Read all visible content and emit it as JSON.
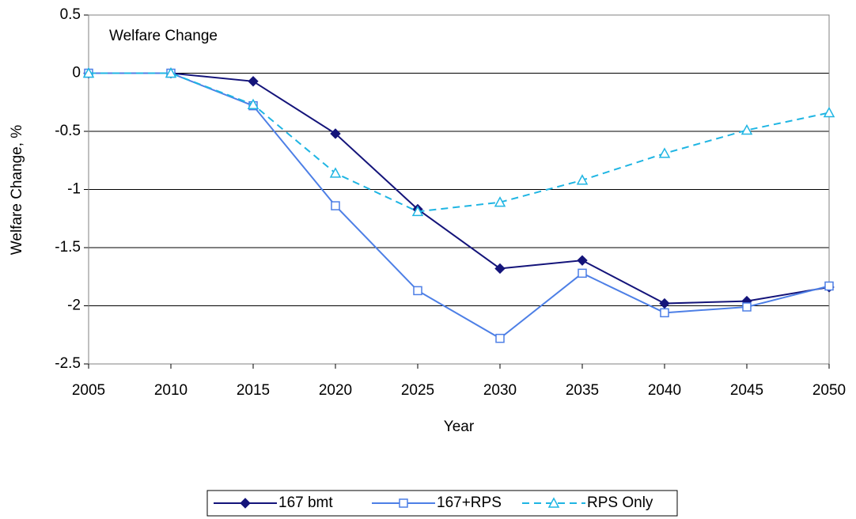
{
  "chart_data": {
    "type": "line",
    "annotation": "Welfare Change",
    "xlabel": "Year",
    "ylabel": "Welfare Change, %",
    "x": [
      2005,
      2010,
      2015,
      2020,
      2025,
      2030,
      2035,
      2040,
      2045,
      2050
    ],
    "xlim": [
      2005,
      2050
    ],
    "xticks": [
      2005,
      2010,
      2015,
      2020,
      2025,
      2030,
      2035,
      2040,
      2045,
      2050
    ],
    "ylim": [
      -2.5,
      0.5
    ],
    "yticks": [
      0.5,
      0,
      -0.5,
      -1,
      -1.5,
      -2,
      -2.5
    ],
    "grid": true,
    "legend": "bottom",
    "series": [
      {
        "name": "167 bmt",
        "color": "#14147a",
        "marker": "diamond",
        "dash": false,
        "values": [
          0,
          0,
          -0.07,
          -0.52,
          -1.17,
          -1.68,
          -1.61,
          -1.98,
          -1.96,
          -1.84
        ]
      },
      {
        "name": "167+RPS",
        "color": "#4d7fe6",
        "marker": "square",
        "dash": false,
        "values": [
          0,
          0,
          -0.28,
          -1.14,
          -1.87,
          -2.28,
          -1.72,
          -2.06,
          -2.01,
          -1.83
        ]
      },
      {
        "name": "RPS Only",
        "color": "#1fb5e3",
        "marker": "triangle",
        "dash": true,
        "values": [
          0,
          0,
          -0.27,
          -0.86,
          -1.19,
          -1.11,
          -0.92,
          -0.69,
          -0.49,
          -0.34
        ]
      }
    ]
  }
}
